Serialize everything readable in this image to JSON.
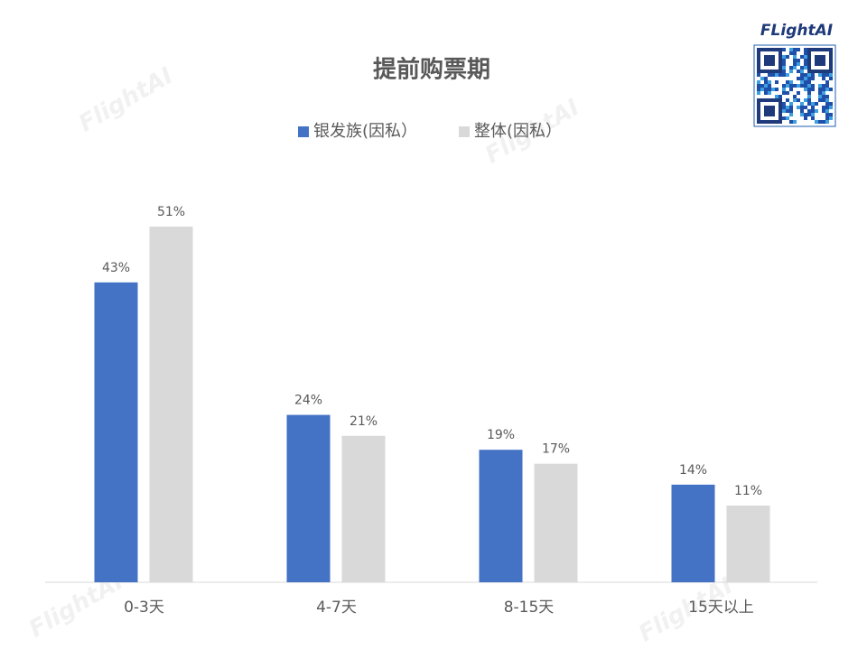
{
  "chart_data": {
    "type": "bar",
    "title": "提前购票期",
    "categories": [
      "0-3天",
      "4-7天",
      "8-15天",
      "15天以上"
    ],
    "series": [
      {
        "name": "银发族(因私）",
        "color": "#4472c4",
        "values": [
          43,
          24,
          19,
          14
        ],
        "value_labels": [
          "43%",
          "24%",
          "19%",
          "14%"
        ]
      },
      {
        "name": "整体(因私）",
        "color": "#d9d9d9",
        "values": [
          51,
          21,
          17,
          11
        ],
        "value_labels": [
          "51%",
          "21%",
          "17%",
          "11%"
        ]
      }
    ],
    "legend": "top",
    "logo": "FLightAI",
    "watermark": "FlightAI"
  }
}
